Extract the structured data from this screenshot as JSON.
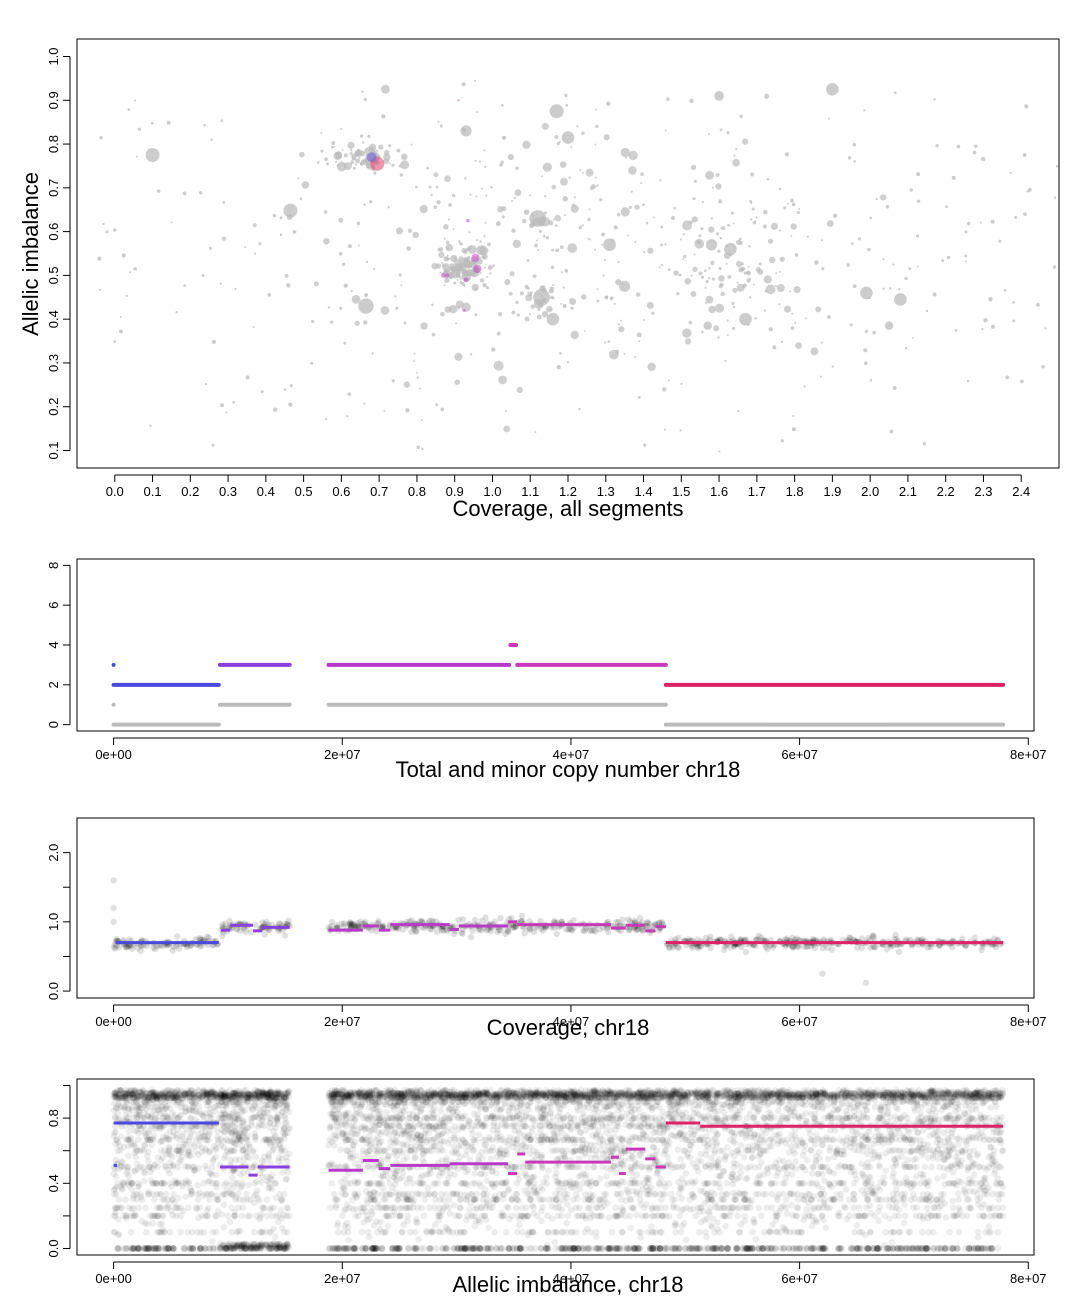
{
  "chart_data": [
    {
      "type": "scatter",
      "id": "scatter",
      "xlabel": "Coverage, all segments",
      "ylabel": "Allelic imbalance",
      "xlim": [
        -0.1,
        2.5
      ],
      "ylim": [
        0.06,
        1.04
      ],
      "x_ticks": [
        0.0,
        0.1,
        0.2,
        0.3,
        0.4,
        0.5,
        0.6,
        0.7,
        0.8,
        0.9,
        1.0,
        1.1,
        1.2,
        1.3,
        1.4,
        1.5,
        1.6,
        1.7,
        1.8,
        1.9,
        2.0,
        2.1,
        2.2,
        2.3,
        2.4
      ],
      "x_tick_labels": [
        "0.0",
        "0.1",
        "0.2",
        "0.3",
        "0.4",
        "0.5",
        "0.6",
        "0.7",
        "0.8",
        "0.9",
        "1.0",
        "1.1",
        "1.2",
        "1.3",
        "1.4",
        "1.5",
        "1.6",
        "1.7",
        "1.8",
        "1.9",
        "2.0",
        "2.1",
        "2.2",
        "2.3",
        "2.4"
      ],
      "y_ticks": [
        0.1,
        0.2,
        0.3,
        0.4,
        0.5,
        0.6,
        0.7,
        0.8,
        0.9,
        1.0
      ],
      "y_tick_labels": [
        "0.1",
        "0.2",
        "0.3",
        "0.4",
        "0.5",
        "0.6",
        "0.7",
        "0.8",
        "0.9",
        "1.0"
      ],
      "clusters": [
        {
          "x": 0.66,
          "y": 0.77,
          "sx": 0.04,
          "sy": 0.012,
          "n": 90,
          "color": "#bbbbbb"
        },
        {
          "x": 0.92,
          "y": 0.52,
          "sx": 0.035,
          "sy": 0.025,
          "n": 110,
          "color": "#bbbbbb"
        },
        {
          "x": 1.13,
          "y": 0.45,
          "sx": 0.025,
          "sy": 0.02,
          "n": 25,
          "color": "#bbbbbb"
        },
        {
          "x": 1.12,
          "y": 0.63,
          "sx": 0.02,
          "sy": 0.012,
          "n": 15,
          "color": "#bbbbbb"
        },
        {
          "x": 1.65,
          "y": 0.5,
          "sx": 0.1,
          "sy": 0.08,
          "n": 70,
          "color": "#bbbbbb"
        },
        {
          "x": 1.2,
          "y": 0.55,
          "sx": 0.35,
          "sy": 0.18,
          "n": 300,
          "color": "#bbbbbb"
        }
      ],
      "big_points": [
        {
          "x": 0.1,
          "y": 0.775,
          "r": 1.0
        },
        {
          "x": 0.465,
          "y": 0.648,
          "r": 1.0
        },
        {
          "x": 0.665,
          "y": 0.43,
          "r": 1.1
        },
        {
          "x": 0.93,
          "y": 0.83,
          "r": 0.8
        },
        {
          "x": 1.17,
          "y": 0.875,
          "r": 1.0
        },
        {
          "x": 1.2,
          "y": 0.815,
          "r": 0.9
        },
        {
          "x": 1.12,
          "y": 0.63,
          "r": 1.2
        },
        {
          "x": 1.13,
          "y": 0.45,
          "r": 1.2
        },
        {
          "x": 1.16,
          "y": 0.4,
          "r": 0.9
        },
        {
          "x": 1.31,
          "y": 0.57,
          "r": 0.9
        },
        {
          "x": 1.35,
          "y": 0.475,
          "r": 0.8
        },
        {
          "x": 1.58,
          "y": 0.57,
          "r": 0.8
        },
        {
          "x": 1.63,
          "y": 0.56,
          "r": 0.9
        },
        {
          "x": 1.67,
          "y": 0.4,
          "r": 0.9
        },
        {
          "x": 1.6,
          "y": 0.91,
          "r": 0.7
        },
        {
          "x": 1.9,
          "y": 0.925,
          "r": 0.9
        },
        {
          "x": 1.99,
          "y": 0.46,
          "r": 0.9
        },
        {
          "x": 2.08,
          "y": 0.445,
          "r": 0.9
        },
        {
          "x": 2.05,
          "y": 0.385,
          "r": 0.6
        },
        {
          "x": 1.57,
          "y": 0.385,
          "r": 0.6
        }
      ],
      "colored_points": [
        {
          "x": 0.695,
          "y": 0.755,
          "r": 1.0,
          "color": "#e0406a"
        },
        {
          "x": 0.68,
          "y": 0.77,
          "r": 0.7,
          "color": "#6a5ee0"
        },
        {
          "x": 0.955,
          "y": 0.54,
          "r": 0.6,
          "color": "#d04ad0"
        },
        {
          "x": 0.96,
          "y": 0.515,
          "r": 0.6,
          "color": "#c040c0"
        },
        {
          "x": 0.93,
          "y": 0.49,
          "r": 0.35,
          "color": "#c040c0"
        },
        {
          "x": 0.88,
          "y": 0.5,
          "r": 0.3,
          "color": "#c040c0"
        },
        {
          "x": 0.935,
          "y": 0.625,
          "r": 0.25,
          "color": "#c040c0"
        },
        {
          "x": 0.91,
          "y": 0.9,
          "r": 0.15,
          "color": "#c040c0"
        },
        {
          "x": 0.925,
          "y": 0.42,
          "r": 0.2,
          "color": "#c040c0"
        },
        {
          "x": 0.87,
          "y": 0.5,
          "r": 0.35,
          "color": "#d04ad0"
        }
      ]
    },
    {
      "type": "scatter",
      "id": "copynumber",
      "xlabel": "Total and minor copy number chr18",
      "ylabel": "",
      "xlim": [
        -3200000.0,
        80500000.0
      ],
      "ylim": [
        -0.32,
        8.32
      ],
      "x_ticks": [
        0,
        20000000,
        40000000,
        60000000,
        80000000
      ],
      "x_tick_labels": [
        "0e+00",
        "2e+07",
        "4e+07",
        "6e+07",
        "8e+07"
      ],
      "y_ticks": [
        0,
        2,
        4,
        6,
        8
      ],
      "y_tick_labels": [
        "0",
        "2",
        "4",
        "6",
        "8"
      ],
      "total_segments": [
        {
          "x0": 0,
          "x1": 9200000,
          "y": 2,
          "color": "#4a48dd"
        },
        {
          "x0": 9300000,
          "x1": 15400000,
          "y": 3,
          "color": "#8a40dd"
        },
        {
          "x0": 18800000,
          "x1": 34600000,
          "y": 3,
          "color": "#b83ac8"
        },
        {
          "x0": 34700000,
          "x1": 35200000,
          "y": 4,
          "color": "#c83ab8"
        },
        {
          "x0": 35300000,
          "x1": 48300000,
          "y": 3,
          "color": "#c83ab8"
        },
        {
          "x0": 48300000,
          "x1": 77800000,
          "y": 2,
          "color": "#dd2266"
        }
      ],
      "minor_segments": [
        {
          "x0": 0,
          "x1": 9200000,
          "y": 0
        },
        {
          "x0": 9300000,
          "x1": 15400000,
          "y": 1
        },
        {
          "x0": 18800000,
          "x1": 48300000,
          "y": 1
        },
        {
          "x0": 48300000,
          "x1": 77800000,
          "y": 0
        }
      ],
      "outliers": [
        {
          "x": 0,
          "y": 3,
          "color": "#4a48dd"
        },
        {
          "x": 0,
          "y": 1,
          "color": "#bbbbbb"
        }
      ]
    },
    {
      "type": "scatter",
      "id": "coverage",
      "xlabel": "Coverage, chr18",
      "ylabel": "",
      "xlim": [
        -3200000.0,
        80500000.0
      ],
      "ylim": [
        -0.1,
        2.5
      ],
      "x_ticks": [
        0,
        20000000,
        40000000,
        60000000,
        80000000
      ],
      "x_tick_labels": [
        "0e+00",
        "2e+07",
        "4e+07",
        "6e+07",
        "8e+07"
      ],
      "y_ticks": [
        0,
        0.5,
        1.0,
        1.5,
        2.0
      ],
      "y_tick_labels": [
        "0.0",
        "",
        "1.0",
        "",
        "2.0"
      ],
      "regions": [
        {
          "x0": 0,
          "x1": 9200000,
          "mean": 0.68,
          "sd": 0.04
        },
        {
          "x0": 9300000,
          "x1": 15400000,
          "mean": 0.92,
          "sd": 0.05
        },
        {
          "x0": 18800000,
          "x1": 48300000,
          "mean": 0.93,
          "sd": 0.05
        },
        {
          "x0": 48300000,
          "x1": 77800000,
          "mean": 0.7,
          "sd": 0.04
        }
      ],
      "segments": [
        {
          "x0": 200000,
          "x1": 9200000,
          "y": 0.7,
          "color": "#4a48dd"
        },
        {
          "x0": 9400000,
          "x1": 10200000,
          "y": 0.88,
          "color": "#8a40dd"
        },
        {
          "x0": 10200000,
          "x1": 12200000,
          "y": 0.95,
          "color": "#8a40dd"
        },
        {
          "x0": 12200000,
          "x1": 13000000,
          "y": 0.87,
          "color": "#8a40dd"
        },
        {
          "x0": 13000000,
          "x1": 15400000,
          "y": 0.92,
          "color": "#8a40dd"
        },
        {
          "x0": 18800000,
          "x1": 21800000,
          "y": 0.88,
          "color": "#b83ac8"
        },
        {
          "x0": 21800000,
          "x1": 23200000,
          "y": 0.94,
          "color": "#b83ac8"
        },
        {
          "x0": 23200000,
          "x1": 24200000,
          "y": 0.88,
          "color": "#b83ac8"
        },
        {
          "x0": 24200000,
          "x1": 29400000,
          "y": 0.96,
          "color": "#b83ac8"
        },
        {
          "x0": 29400000,
          "x1": 30200000,
          "y": 0.89,
          "color": "#b83ac8"
        },
        {
          "x0": 30200000,
          "x1": 34500000,
          "y": 0.94,
          "color": "#b83ac8"
        },
        {
          "x0": 34500000,
          "x1": 35300000,
          "y": 1.0,
          "color": "#c83ab8"
        },
        {
          "x0": 35300000,
          "x1": 43500000,
          "y": 0.96,
          "color": "#c83ab8"
        },
        {
          "x0": 43500000,
          "x1": 44800000,
          "y": 0.91,
          "color": "#c83ab8"
        },
        {
          "x0": 44800000,
          "x1": 46500000,
          "y": 0.95,
          "color": "#c83ab8"
        },
        {
          "x0": 46500000,
          "x1": 47400000,
          "y": 0.87,
          "color": "#c83ab8"
        },
        {
          "x0": 47400000,
          "x1": 48300000,
          "y": 0.93,
          "color": "#c83ab8"
        },
        {
          "x0": 48300000,
          "x1": 77800000,
          "y": 0.7,
          "color": "#dd2266"
        }
      ],
      "outliers": [
        {
          "x": 0,
          "y": 1.6
        },
        {
          "x": 0,
          "y": 1.2
        },
        {
          "x": 0,
          "y": 1.0
        },
        {
          "x": 62000000,
          "y": 0.25
        },
        {
          "x": 65800000,
          "y": 0.12
        }
      ]
    },
    {
      "type": "scatter",
      "id": "baf",
      "xlabel": "Allelic imbalance, chr18",
      "ylabel": "",
      "xlim": [
        -3200000.0,
        80500000.0
      ],
      "ylim": [
        -0.04,
        1.04
      ],
      "x_ticks": [
        0,
        20000000,
        40000000,
        60000000,
        80000000
      ],
      "x_tick_labels": [
        "0e+00",
        "2e+07",
        "4e+07",
        "6e+07",
        "8e+07"
      ],
      "y_ticks": [
        0.0,
        0.2,
        0.4,
        0.6,
        0.8,
        1.0
      ],
      "y_tick_labels": [
        "0.0",
        "",
        "0.4",
        "",
        "0.8",
        ""
      ],
      "regions": [
        {
          "x0": 0,
          "x1": 9200000,
          "density": 1.0
        },
        {
          "x0": 9300000,
          "x1": 15400000,
          "density": 1.3
        },
        {
          "x0": 18800000,
          "x1": 48300000,
          "density": 1.0
        },
        {
          "x0": 48300000,
          "x1": 77800000,
          "density": 0.85
        }
      ],
      "segments": [
        {
          "x0": 0,
          "x1": 9200000,
          "y": 0.77,
          "color": "#4a48dd"
        },
        {
          "x0": 0,
          "x1": 300000,
          "y": 0.51,
          "color": "#4a48dd"
        },
        {
          "x0": 9300000,
          "x1": 11800000,
          "y": 0.5,
          "color": "#8a40dd"
        },
        {
          "x0": 11800000,
          "x1": 12600000,
          "y": 0.45,
          "color": "#8a40dd"
        },
        {
          "x0": 12600000,
          "x1": 15400000,
          "y": 0.5,
          "color": "#8a40dd"
        },
        {
          "x0": 18800000,
          "x1": 21800000,
          "y": 0.48,
          "color": "#b83ac8"
        },
        {
          "x0": 21800000,
          "x1": 23200000,
          "y": 0.54,
          "color": "#b83ac8"
        },
        {
          "x0": 23200000,
          "x1": 24200000,
          "y": 0.49,
          "color": "#b83ac8"
        },
        {
          "x0": 24200000,
          "x1": 29400000,
          "y": 0.51,
          "color": "#b83ac8"
        },
        {
          "x0": 29400000,
          "x1": 34500000,
          "y": 0.52,
          "color": "#b83ac8"
        },
        {
          "x0": 34500000,
          "x1": 35300000,
          "y": 0.46,
          "color": "#c83ab8"
        },
        {
          "x0": 35300000,
          "x1": 36000000,
          "y": 0.58,
          "color": "#c83ab8"
        },
        {
          "x0": 36000000,
          "x1": 43500000,
          "y": 0.53,
          "color": "#c83ab8"
        },
        {
          "x0": 43500000,
          "x1": 44200000,
          "y": 0.56,
          "color": "#c83ab8"
        },
        {
          "x0": 44200000,
          "x1": 44800000,
          "y": 0.46,
          "color": "#c83ab8"
        },
        {
          "x0": 44800000,
          "x1": 46500000,
          "y": 0.61,
          "color": "#c83ab8"
        },
        {
          "x0": 46500000,
          "x1": 47400000,
          "y": 0.55,
          "color": "#c83ab8"
        },
        {
          "x0": 47400000,
          "x1": 48300000,
          "y": 0.5,
          "color": "#c83ab8"
        },
        {
          "x0": 48300000,
          "x1": 51300000,
          "y": 0.77,
          "color": "#dd2266"
        },
        {
          "x0": 51300000,
          "x1": 77800000,
          "y": 0.75,
          "color": "#dd2266"
        }
      ]
    }
  ],
  "colors": {
    "grey_points": "#bbbbbb",
    "minor_cn": "#bbbbbb",
    "black_points": "#000000"
  }
}
